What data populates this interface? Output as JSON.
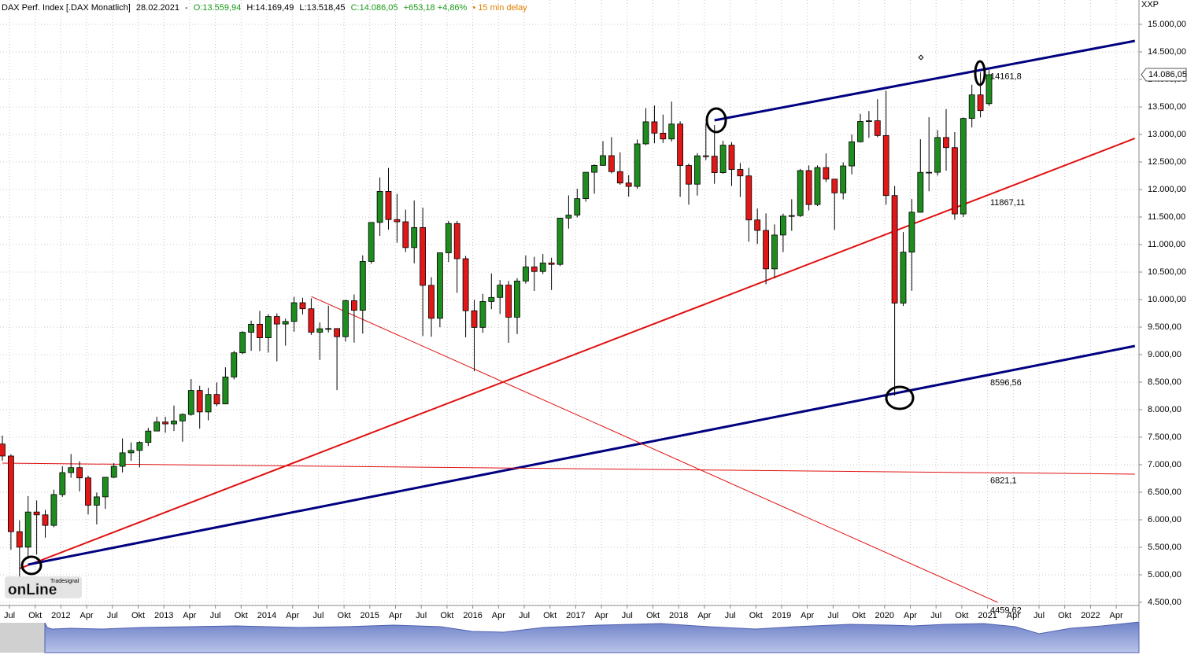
{
  "chart_data": {
    "type": "candlestick",
    "header": {
      "title": "DAX Perf. Index [.DAX Monatlich]",
      "date": "28.02.2021",
      "separator": "-",
      "open": "O:13.559,94",
      "high": "H:14.169,49",
      "low": "L:13.518,45",
      "close": "C:14.086,05",
      "change": "+653,18 +4,86%",
      "delay": "• 15 min delay"
    },
    "units": "XXP",
    "logo": {
      "brand": "Tradesignal",
      "text": "onLine"
    },
    "up_color": "#1e8c1e",
    "down_color": "#e01818",
    "x": [
      "2011-07",
      "2011-08",
      "2011-09",
      "2011-10",
      "2011-11",
      "2011-12",
      "2012-01",
      "2012-02",
      "2012-03",
      "2012-04",
      "2012-05",
      "2012-06",
      "2012-07",
      "2012-08",
      "2012-09",
      "2012-10",
      "2012-11",
      "2012-12",
      "2013-01",
      "2013-02",
      "2013-03",
      "2013-04",
      "2013-05",
      "2013-06",
      "2013-07",
      "2013-08",
      "2013-09",
      "2013-10",
      "2013-11",
      "2013-12",
      "2014-01",
      "2014-02",
      "2014-03",
      "2014-04",
      "2014-05",
      "2014-06",
      "2014-07",
      "2014-08",
      "2014-09",
      "2014-10",
      "2014-11",
      "2014-12",
      "2015-01",
      "2015-02",
      "2015-03",
      "2015-04",
      "2015-05",
      "2015-06",
      "2015-07",
      "2015-08",
      "2015-09",
      "2015-10",
      "2015-11",
      "2015-12",
      "2016-01",
      "2016-02",
      "2016-03",
      "2016-04",
      "2016-05",
      "2016-06",
      "2016-07",
      "2016-08",
      "2016-09",
      "2016-10",
      "2016-11",
      "2016-12",
      "2017-01",
      "2017-02",
      "2017-03",
      "2017-04",
      "2017-05",
      "2017-06",
      "2017-07",
      "2017-08",
      "2017-09",
      "2017-10",
      "2017-11",
      "2017-12",
      "2018-01",
      "2018-02",
      "2018-03",
      "2018-04",
      "2018-05",
      "2018-06",
      "2018-07",
      "2018-08",
      "2018-09",
      "2018-10",
      "2018-11",
      "2018-12",
      "2019-01",
      "2019-02",
      "2019-03",
      "2019-04",
      "2019-05",
      "2019-06",
      "2019-07",
      "2019-08",
      "2019-09",
      "2019-10",
      "2019-11",
      "2019-12",
      "2020-01",
      "2020-02",
      "2020-03",
      "2020-04",
      "2020-05",
      "2020-06",
      "2020-07",
      "2020-08",
      "2020-09",
      "2020-10",
      "2020-11",
      "2020-12",
      "2021-01",
      "2021-02"
    ],
    "open": [
      7376,
      7158,
      5784,
      5502,
      6141,
      6089,
      5898,
      6458,
      6856,
      6947,
      6761,
      6264,
      6416,
      6772,
      6971,
      7216,
      7260,
      7405,
      7612,
      7776,
      7742,
      7795,
      7914,
      8349,
      7959,
      8276,
      8104,
      8594,
      9033,
      9406,
      9552,
      9306,
      9692,
      9556,
      9603,
      9943,
      9833,
      9407,
      9470,
      9474,
      9326,
      9980,
      9806,
      10694,
      11402,
      11966,
      11454,
      11414,
      10945,
      11309,
      10259,
      9660,
      10850,
      11382,
      10743,
      9798,
      9495,
      9966,
      10039,
      10263,
      9680,
      10337,
      10593,
      10511,
      10665,
      10640,
      11481,
      11535,
      11834,
      12313,
      12438,
      12615,
      12325,
      12118,
      12056,
      12829,
      13230,
      13024,
      12918,
      13189,
      12436,
      12097,
      12612,
      12605,
      12306,
      12806,
      12364,
      12247,
      11447,
      11257,
      10559,
      11173,
      11516,
      11526,
      12344,
      11727,
      12399,
      12189,
      11939,
      12428,
      12867,
      13236,
      13249,
      12981,
      11890,
      9936,
      10862,
      11587,
      12311,
      12313,
      12945,
      12761,
      11556,
      13291,
      13719,
      13559.94
    ],
    "high": [
      7528,
      7190,
      5990,
      6430,
      6351,
      6178,
      6547,
      6971,
      7194,
      7063,
      6800,
      6495,
      6775,
      7028,
      7478,
      7406,
      7426,
      7672,
      7872,
      7872,
      8075,
      7934,
      8558,
      8433,
      8398,
      8494,
      8770,
      9069,
      9424,
      9618,
      9795,
      9735,
      9750,
      9655,
      10050,
      10033,
      10022,
      9585,
      9891,
      9477,
      10001,
      10093,
      10804,
      11402,
      12219,
      12391,
      11920,
      11634,
      11802,
      11670,
      10406,
      10850,
      11430,
      11430,
      10793,
      9995,
      10104,
      10475,
      10355,
      10340,
      10388,
      10802,
      10778,
      10827,
      10761,
      11482,
      11893,
      12014,
      12313,
      12456,
      12878,
      12952,
      12676,
      12261,
      12908,
      13478,
      13526,
      13361,
      13597,
      13239,
      12471,
      12661,
      13204,
      13170,
      12887,
      12860,
      12481,
      12394,
      11654,
      11566,
      11367,
      11562,
      11823,
      12374,
      12438,
      12438,
      12656,
      12189,
      12494,
      13000,
      13374,
      13425,
      13640,
      13795,
      12065,
      11227,
      11827,
      12913,
      13313,
      13082,
      13460,
      13043,
      13308,
      13903,
      14131,
      14169.49
    ],
    "low": [
      7074,
      5454,
      4965,
      5290,
      5367,
      5676,
      5863,
      6416,
      6763,
      6516,
      6097,
      5915,
      6197,
      6755,
      6860,
      7072,
      6950,
      7342,
      7610,
      7581,
      7612,
      7418,
      7891,
      7656,
      7807,
      8063,
      8104,
      8549,
      9009,
      9070,
      9064,
      9038,
      8879,
      9163,
      9416,
      9730,
      9358,
      8903,
      9401,
      8355,
      9237,
      9219,
      9382,
      10652,
      11156,
      11270,
      11035,
      10863,
      10659,
      9338,
      9326,
      9497,
      10682,
      10124,
      9315,
      8699,
      9397,
      9826,
      9738,
      9214,
      9373,
      10291,
      10157,
      10466,
      10174,
      10609,
      11290,
      11493,
      11778,
      11923,
      12432,
      12294,
      12087,
      11869,
      12012,
      12806,
      12840,
      12845,
      12871,
      11867,
      11726,
      11890,
      12535,
      12104,
      12284,
      12064,
      11865,
      11051,
      11009,
      10279,
      10387,
      10863,
      11249,
      11500,
      11620,
      11700,
      12136,
      11266,
      11821,
      12275,
      12854,
      12940,
      12949,
      11724,
      8256,
      9884,
      10160,
      11580,
      11968,
      12253,
      12342,
      11450,
      11500,
      13128,
      13310,
      13518.45
    ],
    "close": [
      7158,
      5784,
      5502,
      6141,
      6089,
      5898,
      6458,
      6856,
      6947,
      6761,
      6264,
      6416,
      6772,
      6971,
      7216,
      7260,
      7405,
      7612,
      7776,
      7742,
      7795,
      7914,
      8349,
      7959,
      8276,
      8104,
      8594,
      9033,
      9406,
      9552,
      9306,
      9692,
      9556,
      9603,
      9943,
      9833,
      9407,
      9470,
      9474,
      9326,
      9980,
      9806,
      10694,
      11402,
      11966,
      11454,
      11414,
      10945,
      11309,
      10259,
      9660,
      10850,
      11382,
      10743,
      9798,
      9495,
      9966,
      10039,
      10263,
      9680,
      10337,
      10593,
      10511,
      10665,
      10640,
      11481,
      11535,
      11834,
      12313,
      12438,
      12615,
      12325,
      12118,
      12056,
      12829,
      13230,
      13024,
      12918,
      13189,
      12436,
      12097,
      12612,
      12605,
      12306,
      12806,
      12364,
      12247,
      11447,
      11257,
      10559,
      11173,
      11516,
      11526,
      12344,
      11727,
      12399,
      12189,
      11939,
      12428,
      12867,
      13236,
      13249,
      12981,
      11890,
      9936,
      10862,
      11587,
      12311,
      12313,
      12945,
      12761,
      11556,
      13291,
      13719,
      13433,
      14086.05
    ],
    "price_tag": {
      "value": 14086.05,
      "label": "14.086,05"
    },
    "trendlines": [
      {
        "start": [
          "2018-06",
          13257
        ],
        "end": [
          "2022-07",
          14700
        ],
        "color": "#000080",
        "width": 3,
        "value": 14161.8,
        "value_label": "14161,8"
      },
      {
        "start": [
          "2011-09",
          5114
        ],
        "end": [
          "2022-07",
          12929
        ],
        "color": "#e01010",
        "width": 2,
        "value": 11867.11,
        "value_label": "11867,11"
      },
      {
        "start": [
          "2011-10",
          5186
        ],
        "end": [
          "2022-07",
          9157
        ],
        "color": "#000080",
        "width": 3,
        "value": 8596.56,
        "value_label": "8596,56"
      },
      {
        "start": [
          "2011-07",
          7029
        ],
        "end": [
          "2022-07",
          6829
        ],
        "color": "#e01010",
        "width": 1,
        "value": 6821.1,
        "value_label": "6821,1"
      },
      {
        "start": [
          "2014-07",
          10057
        ],
        "end": [
          "2021-03",
          4500
        ],
        "color": "#e01010",
        "width": 1,
        "value": 4459.62,
        "value_label": "4459,62"
      }
    ],
    "ylim": [
      4443,
      15443
    ],
    "yticks": [
      {
        "value": 4500,
        "label": "4.500,00"
      },
      {
        "value": 5000,
        "label": "5.000,00"
      },
      {
        "value": 5500,
        "label": "5.500,00"
      },
      {
        "value": 6000,
        "label": "6.000,00"
      },
      {
        "value": 6500,
        "label": "6.500,00"
      },
      {
        "value": 7000,
        "label": "7.000,00"
      },
      {
        "value": 7500,
        "label": "7.500,00"
      },
      {
        "value": 8000,
        "label": "8.000,00"
      },
      {
        "value": 8500,
        "label": "8.500,00"
      },
      {
        "value": 9000,
        "label": "9.000,00"
      },
      {
        "value": 9500,
        "label": "9.500,00"
      },
      {
        "value": 10000,
        "label": "10.000,00"
      },
      {
        "value": 10500,
        "label": "10.500,00"
      },
      {
        "value": 11000,
        "label": "11.000,00"
      },
      {
        "value": 11500,
        "label": "11.500,00"
      },
      {
        "value": 12000,
        "label": "12.000,00"
      },
      {
        "value": 12500,
        "label": "12.500,00"
      },
      {
        "value": 13000,
        "label": "13.000,00"
      },
      {
        "value": 13500,
        "label": "13.500,00"
      },
      {
        "value": 14000,
        "label": "14.000,00"
      },
      {
        "value": 14500,
        "label": "14.500,00"
      },
      {
        "value": 15000,
        "label": "15.000,00"
      }
    ],
    "xticks": [
      {
        "value": "2011-07",
        "label": "Jul"
      },
      {
        "value": "2011-10",
        "label": "Okt"
      },
      {
        "value": "2012-01",
        "label": "2012"
      },
      {
        "value": "2012-04",
        "label": "Apr"
      },
      {
        "value": "2012-07",
        "label": "Jul"
      },
      {
        "value": "2012-10",
        "label": "Okt"
      },
      {
        "value": "2013-01",
        "label": "2013"
      },
      {
        "value": "2013-04",
        "label": "Apr"
      },
      {
        "value": "2013-07",
        "label": "Jul"
      },
      {
        "value": "2013-10",
        "label": "Okt"
      },
      {
        "value": "2014-01",
        "label": "2014"
      },
      {
        "value": "2014-04",
        "label": "Apr"
      },
      {
        "value": "2014-07",
        "label": "Jul"
      },
      {
        "value": "2014-10",
        "label": "Okt"
      },
      {
        "value": "2015-01",
        "label": "2015"
      },
      {
        "value": "2015-04",
        "label": "Apr"
      },
      {
        "value": "2015-07",
        "label": "Jul"
      },
      {
        "value": "2015-10",
        "label": "Okt"
      },
      {
        "value": "2016-01",
        "label": "2016"
      },
      {
        "value": "2016-04",
        "label": "Apr"
      },
      {
        "value": "2016-07",
        "label": "Jul"
      },
      {
        "value": "2016-10",
        "label": "Okt"
      },
      {
        "value": "2017-01",
        "label": "2017"
      },
      {
        "value": "2017-04",
        "label": "Apr"
      },
      {
        "value": "2017-07",
        "label": "Jul"
      },
      {
        "value": "2017-10",
        "label": "Okt"
      },
      {
        "value": "2018-01",
        "label": "2018"
      },
      {
        "value": "2018-04",
        "label": "Apr"
      },
      {
        "value": "2018-07",
        "label": "Jul"
      },
      {
        "value": "2018-10",
        "label": "Okt"
      },
      {
        "value": "2019-01",
        "label": "2019"
      },
      {
        "value": "2019-04",
        "label": "Apr"
      },
      {
        "value": "2019-07",
        "label": "Jul"
      },
      {
        "value": "2019-10",
        "label": "Okt"
      },
      {
        "value": "2020-01",
        "label": "2020"
      },
      {
        "value": "2020-04",
        "label": "Apr"
      },
      {
        "value": "2020-07",
        "label": "Jul"
      },
      {
        "value": "2020-10",
        "label": "Okt"
      },
      {
        "value": "2021-01",
        "label": "2021"
      },
      {
        "value": "2021-04",
        "label": "Apr"
      },
      {
        "value": "2021-07",
        "label": "Jul"
      },
      {
        "value": "2021-10",
        "label": "Okt"
      },
      {
        "value": "2022-01",
        "label": "2022"
      },
      {
        "value": "2022-04",
        "label": "Apr"
      }
    ],
    "grid": true
  }
}
